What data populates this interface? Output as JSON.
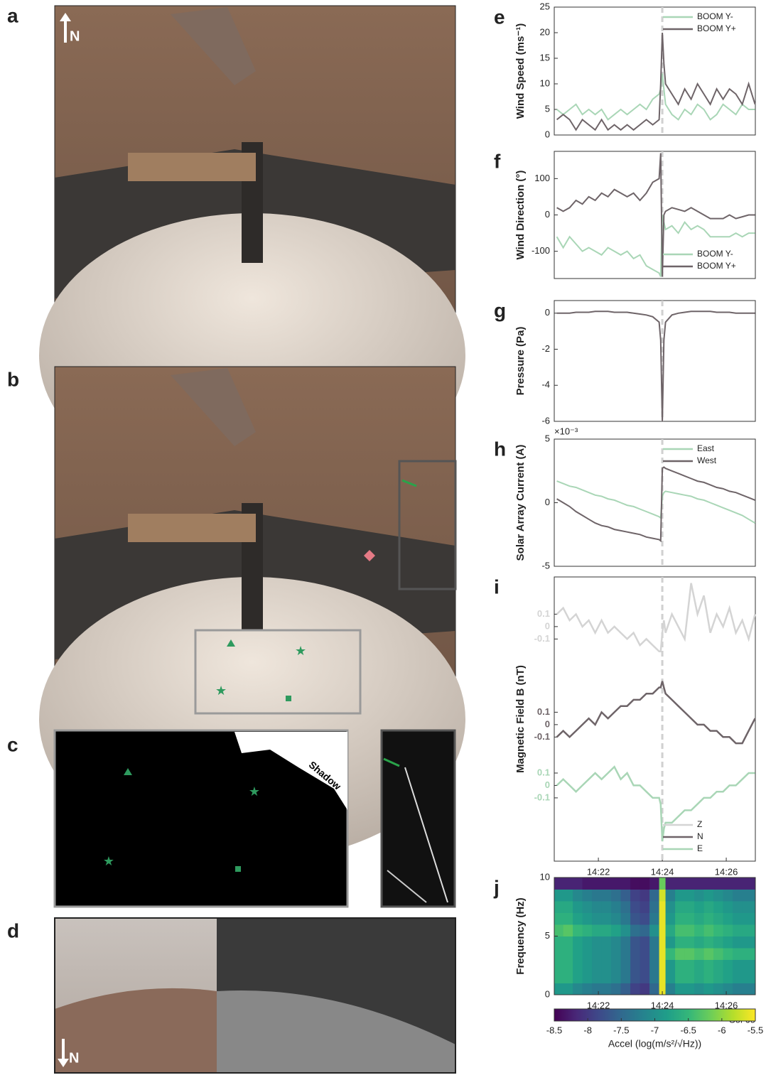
{
  "panels": {
    "labels": [
      "a",
      "b",
      "c",
      "d"
    ],
    "north_a": "N",
    "shadow": "Shadow",
    "north_d": "N"
  },
  "chart_data": [
    {
      "type": "line",
      "label": "e",
      "y_label": "Wind Speed (ms⁻¹)",
      "legend": "upper right",
      "vline": 24.0,
      "x": [
        20.7,
        20.9,
        21.1,
        21.3,
        21.5,
        21.7,
        21.9,
        22.1,
        22.3,
        22.5,
        22.7,
        22.9,
        23.1,
        23.3,
        23.5,
        23.7,
        23.9,
        23.95,
        24.0,
        24.05,
        24.1,
        24.3,
        24.5,
        24.7,
        24.9,
        25.1,
        25.3,
        25.5,
        25.7,
        25.9,
        26.1,
        26.3,
        26.5,
        26.7,
        26.9
      ],
      "xlim": [
        20.62,
        26.91
      ],
      "ylim": [
        0,
        25
      ],
      "yticks": [
        0,
        5,
        10,
        15,
        20,
        25
      ],
      "series": [
        {
          "name": "BOOM Y-",
          "color": "#a9d6b6",
          "values": [
            5,
            4,
            5,
            6,
            4,
            5,
            4,
            5,
            3,
            4,
            5,
            4,
            5,
            6,
            5,
            7,
            8,
            9,
            12,
            9,
            6,
            4,
            3,
            5,
            4,
            6,
            5,
            3,
            4,
            6,
            5,
            4,
            6,
            5,
            5
          ]
        },
        {
          "name": "BOOM Y+",
          "color": "#6e6468",
          "values": [
            3,
            4,
            3,
            1,
            3,
            2,
            1,
            3,
            1,
            2,
            1,
            2,
            1,
            2,
            3,
            2,
            3,
            10,
            20,
            14,
            10,
            8,
            6,
            9,
            7,
            10,
            8,
            6,
            9,
            7,
            9,
            8,
            6,
            10,
            6
          ]
        }
      ]
    },
    {
      "type": "line",
      "label": "f",
      "y_label": "Wind Direction (°)",
      "legend": "lower right",
      "vline": 24.0,
      "x": [
        20.7,
        20.9,
        21.1,
        21.3,
        21.5,
        21.7,
        21.9,
        22.1,
        22.3,
        22.5,
        22.7,
        22.9,
        23.1,
        23.3,
        23.5,
        23.7,
        23.9,
        23.95,
        24.0,
        24.05,
        24.1,
        24.3,
        24.5,
        24.7,
        24.9,
        25.1,
        25.3,
        25.5,
        25.7,
        25.9,
        26.1,
        26.3,
        26.5,
        26.7,
        26.9
      ],
      "xlim": [
        20.62,
        26.91
      ],
      "ylim": [
        -175,
        175
      ],
      "yticks": [
        -100,
        0,
        100
      ],
      "series": [
        {
          "name": "BOOM Y-",
          "color": "#a9d6b6",
          "values": [
            -60,
            -90,
            -60,
            -80,
            -100,
            -90,
            -100,
            -110,
            -90,
            -100,
            -110,
            -100,
            -120,
            -110,
            -140,
            -150,
            -160,
            -170,
            0,
            -20,
            -40,
            -30,
            -50,
            -20,
            -40,
            -30,
            -40,
            -60,
            -60,
            -60,
            -60,
            -50,
            -60,
            -50,
            -50
          ]
        },
        {
          "name": "BOOM Y+",
          "color": "#6e6468",
          "values": [
            20,
            10,
            20,
            40,
            30,
            50,
            40,
            60,
            50,
            70,
            60,
            50,
            60,
            40,
            60,
            90,
            100,
            170,
            -170,
            0,
            10,
            20,
            15,
            10,
            20,
            10,
            0,
            -10,
            -10,
            -10,
            0,
            -10,
            -5,
            0,
            0
          ]
        }
      ]
    },
    {
      "type": "line",
      "label": "g",
      "y_label": "Pressure (Pa)",
      "vline": 24.0,
      "x": [
        20.7,
        20.9,
        21.1,
        21.3,
        21.5,
        21.7,
        21.9,
        22.1,
        22.3,
        22.5,
        22.7,
        22.9,
        23.1,
        23.3,
        23.5,
        23.7,
        23.9,
        23.95,
        24.0,
        24.05,
        24.1,
        24.3,
        24.5,
        24.7,
        24.9,
        25.1,
        25.3,
        25.5,
        25.7,
        25.9,
        26.1,
        26.3,
        26.5,
        26.7,
        26.9
      ],
      "xlim": [
        20.62,
        26.91
      ],
      "ylim": [
        -6,
        0.7
      ],
      "yticks": [
        -6,
        -4,
        -2,
        0
      ],
      "series": [
        {
          "color": "#6e6468",
          "values": [
            0,
            0,
            0,
            0.05,
            0.05,
            0.05,
            0.1,
            0.1,
            0.1,
            0.05,
            0.05,
            0.05,
            0,
            -0.05,
            -0.1,
            -0.2,
            -0.5,
            -1.5,
            -6,
            -1.5,
            -0.5,
            -0.1,
            0,
            0.05,
            0.1,
            0.1,
            0.1,
            0.1,
            0.05,
            0.05,
            0.05,
            0,
            0,
            0,
            0
          ]
        }
      ]
    },
    {
      "type": "line",
      "label": "h",
      "y_label": "Solar Array Current (A)",
      "y_multiplier": "×10⁻³",
      "legend": "upper right",
      "vline": 24.0,
      "x": [
        20.7,
        20.9,
        21.1,
        21.3,
        21.5,
        21.7,
        21.9,
        22.1,
        22.3,
        22.5,
        22.7,
        22.9,
        23.1,
        23.3,
        23.5,
        23.7,
        23.9,
        23.95,
        24.0,
        24.05,
        24.1,
        24.3,
        24.5,
        24.7,
        24.9,
        25.1,
        25.3,
        25.5,
        25.7,
        25.9,
        26.1,
        26.3,
        26.5,
        26.7,
        26.9
      ],
      "xlim": [
        20.62,
        26.91
      ],
      "ylim": [
        -5,
        5
      ],
      "yticks": [
        -5,
        0,
        5
      ],
      "series": [
        {
          "name": "East",
          "color": "#a9d6b6",
          "values": [
            1.7,
            1.5,
            1.3,
            1.2,
            1.0,
            0.8,
            0.6,
            0.5,
            0.3,
            0.2,
            0,
            -0.2,
            -0.3,
            -0.5,
            -0.7,
            -0.9,
            -1.1,
            -1.2,
            0.5,
            0.8,
            0.9,
            0.8,
            0.7,
            0.6,
            0.5,
            0.3,
            0.2,
            0,
            -0.2,
            -0.4,
            -0.6,
            -0.8,
            -1.0,
            -1.3,
            -1.6
          ]
        },
        {
          "name": "West",
          "color": "#6e6468",
          "values": [
            0.3,
            0,
            -0.3,
            -0.7,
            -1.0,
            -1.3,
            -1.6,
            -1.8,
            -1.9,
            -2.1,
            -2.2,
            -2.3,
            -2.4,
            -2.5,
            -2.7,
            -2.8,
            -2.9,
            -3.0,
            2.7,
            2.8,
            2.7,
            2.5,
            2.3,
            2.1,
            1.9,
            1.7,
            1.6,
            1.4,
            1.2,
            1.1,
            0.9,
            0.8,
            0.6,
            0.4,
            0.2
          ]
        }
      ]
    },
    {
      "type": "stacked-line",
      "label": "i",
      "y_label": "Magnetic Field B (nT)",
      "legend": "lower right",
      "vline": 24.0,
      "x": [
        20.7,
        20.9,
        21.1,
        21.3,
        21.5,
        21.7,
        21.9,
        22.1,
        22.3,
        22.5,
        22.7,
        22.9,
        23.1,
        23.3,
        23.5,
        23.7,
        23.9,
        23.95,
        24.0,
        24.05,
        24.1,
        24.3,
        24.5,
        24.7,
        24.9,
        25.1,
        25.3,
        25.5,
        25.7,
        25.9,
        26.1,
        26.3,
        26.5,
        26.7,
        26.9
      ],
      "xlim": [
        20.62,
        26.91
      ],
      "xticks": [
        {
          "value": 22,
          "label": "14:22"
        },
        {
          "value": 24,
          "label": "14:24"
        },
        {
          "value": 26,
          "label": "14:26"
        }
      ],
      "series": [
        {
          "name": "Z",
          "color": "#d4d4d4",
          "ylim": [
            -0.35,
            0.4
          ],
          "yticks": [
            -0.1,
            0,
            0.1
          ],
          "values": [
            0.1,
            0.15,
            0.05,
            0.1,
            0,
            0.05,
            -0.05,
            0.05,
            -0.05,
            0,
            -0.05,
            -0.1,
            -0.05,
            -0.15,
            -0.1,
            -0.15,
            -0.2,
            -0.2,
            -0.05,
            0.05,
            -0.05,
            0.1,
            0,
            -0.1,
            0.35,
            0.1,
            0.25,
            -0.05,
            0.1,
            0,
            0.15,
            -0.05,
            0.05,
            -0.1,
            0.1
          ]
        },
        {
          "name": "N",
          "color": "#6e6468",
          "ylim": [
            -0.29,
            0.44
          ],
          "yticks": [
            -0.1,
            0,
            0.1
          ],
          "values": [
            -0.1,
            -0.05,
            -0.1,
            -0.05,
            0,
            0.05,
            0,
            0.1,
            0.05,
            0.1,
            0.15,
            0.15,
            0.2,
            0.2,
            0.25,
            0.25,
            0.3,
            0.3,
            0.35,
            0.3,
            0.25,
            0.2,
            0.15,
            0.1,
            0.05,
            0,
            0,
            -0.05,
            -0.05,
            -0.1,
            -0.1,
            -0.15,
            -0.15,
            -0.05,
            0.05
          ]
        },
        {
          "name": "E",
          "color": "#a9d6b6",
          "ylim": [
            -0.61,
            0.2
          ],
          "yticks": [
            -0.1,
            0,
            0.1
          ],
          "values": [
            0,
            0.05,
            0,
            -0.05,
            0,
            0.05,
            0.1,
            0.05,
            0.1,
            0.15,
            0.05,
            0.1,
            0,
            0,
            -0.05,
            -0.1,
            -0.1,
            -0.15,
            -0.45,
            -0.35,
            -0.3,
            -0.3,
            -0.25,
            -0.2,
            -0.2,
            -0.15,
            -0.1,
            -0.1,
            -0.05,
            -0.05,
            0,
            0,
            0.05,
            0.1,
            0.1
          ]
        }
      ]
    },
    {
      "type": "heatmap",
      "label": "j",
      "y_label": "Frequency (Hz)",
      "annotation": "Sol 65",
      "xlim": [
        20.62,
        26.91
      ],
      "xticks": [
        {
          "value": 22,
          "label": "14:22"
        },
        {
          "value": 24,
          "label": "14:24"
        },
        {
          "value": 26,
          "label": "14:26"
        }
      ],
      "ylim": [
        0,
        10
      ],
      "yticks": [
        0,
        5,
        10
      ],
      "xbins": [
        20.62,
        20.9,
        21.2,
        21.5,
        21.8,
        22.1,
        22.4,
        22.7,
        23.0,
        23.3,
        23.6,
        23.9,
        24.1,
        24.4,
        24.7,
        25.0,
        25.3,
        25.6,
        25.9,
        26.2,
        26.5,
        26.91
      ],
      "ybins": [
        0,
        1,
        2,
        3,
        4,
        5,
        6,
        7,
        8,
        9,
        10
      ],
      "z": [
        [
          -6.9,
          -6.9,
          -7.1,
          -7.2,
          -7.3,
          -7.3,
          -7.4,
          -7.6,
          -7.9,
          -8.0,
          -7.5,
          -5.6,
          -7.2,
          -6.9,
          -6.9,
          -7.0,
          -6.9,
          -7.0,
          -7.1,
          -7.2,
          -7.2
        ],
        [
          -6.6,
          -6.6,
          -6.8,
          -6.9,
          -7.0,
          -7.0,
          -7.1,
          -7.3,
          -7.7,
          -7.8,
          -7.3,
          -5.6,
          -6.9,
          -6.6,
          -6.6,
          -6.7,
          -6.6,
          -6.7,
          -6.8,
          -6.9,
          -6.9
        ],
        [
          -6.6,
          -6.6,
          -6.8,
          -6.9,
          -7.0,
          -7.0,
          -7.1,
          -7.3,
          -7.7,
          -7.8,
          -7.3,
          -5.6,
          -6.9,
          -6.6,
          -6.6,
          -6.7,
          -6.6,
          -6.7,
          -6.8,
          -6.9,
          -6.9
        ],
        [
          -6.6,
          -6.6,
          -6.8,
          -6.9,
          -7.0,
          -7.0,
          -7.1,
          -7.3,
          -7.7,
          -7.8,
          -7.3,
          -5.6,
          -6.5,
          -6.3,
          -6.3,
          -6.4,
          -6.3,
          -6.4,
          -6.5,
          -6.6,
          -6.6
        ],
        [
          -6.6,
          -6.6,
          -6.8,
          -6.9,
          -7.0,
          -7.0,
          -7.1,
          -7.3,
          -7.7,
          -7.8,
          -7.3,
          -5.6,
          -6.9,
          -6.6,
          -6.6,
          -6.7,
          -6.6,
          -6.7,
          -6.8,
          -6.9,
          -6.9
        ],
        [
          -6.4,
          -6.3,
          -6.5,
          -6.6,
          -6.7,
          -6.7,
          -6.8,
          -7.0,
          -7.4,
          -7.5,
          -7.0,
          -5.6,
          -6.7,
          -6.4,
          -6.4,
          -6.5,
          -6.4,
          -6.5,
          -6.6,
          -6.7,
          -6.7
        ],
        [
          -6.6,
          -6.6,
          -6.8,
          -6.9,
          -7.0,
          -7.0,
          -7.1,
          -7.3,
          -7.7,
          -7.8,
          -7.3,
          -5.6,
          -6.9,
          -6.6,
          -6.6,
          -6.7,
          -6.6,
          -6.7,
          -6.8,
          -6.9,
          -6.9
        ],
        [
          -6.7,
          -6.7,
          -6.9,
          -7.0,
          -7.1,
          -7.1,
          -7.2,
          -7.4,
          -7.8,
          -7.9,
          -7.4,
          -5.6,
          -7.0,
          -6.7,
          -6.7,
          -6.8,
          -6.7,
          -6.8,
          -6.9,
          -7.0,
          -7.0
        ],
        [
          -6.9,
          -6.9,
          -7.1,
          -7.2,
          -7.3,
          -7.3,
          -7.4,
          -7.6,
          -7.9,
          -8.0,
          -7.5,
          -5.7,
          -7.2,
          -6.9,
          -6.9,
          -7.0,
          -6.9,
          -7.0,
          -7.1,
          -7.2,
          -7.2
        ],
        [
          -8.2,
          -8.2,
          -8.2,
          -8.3,
          -8.3,
          -8.3,
          -8.3,
          -8.3,
          -8.4,
          -8.4,
          -8.3,
          -6.2,
          -8.2,
          -8.2,
          -8.2,
          -8.2,
          -8.2,
          -8.2,
          -8.2,
          -8.2,
          -8.2
        ]
      ],
      "clim": [
        -8.5,
        -5.5
      ],
      "colorbar_ticks": [
        -8.5,
        -8,
        -7.5,
        -7,
        -6.5,
        -6,
        -5.5
      ],
      "colorbar_label": "Accel (log(m/s²/√Hz))"
    }
  ]
}
